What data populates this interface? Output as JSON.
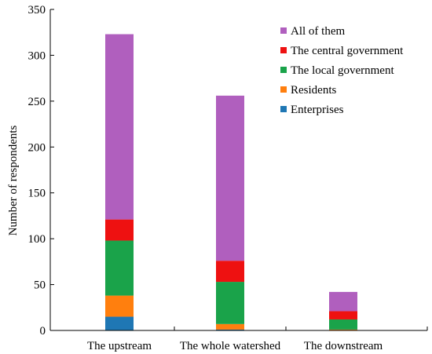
{
  "chart_data": {
    "type": "bar",
    "stacked": true,
    "ylabel": "Number of respondents",
    "xlabel": "",
    "ylim": [
      0,
      350
    ],
    "yticks": [
      0,
      50,
      100,
      150,
      200,
      250,
      300,
      350
    ],
    "categories": [
      "The upstream",
      "The whole watershed",
      "The downstream"
    ],
    "series": [
      {
        "name": "Enterprises",
        "color": "#1f77b4",
        "values": [
          15,
          1,
          0
        ]
      },
      {
        "name": "Residents",
        "color": "#ff7f0e",
        "values": [
          23,
          6,
          1
        ]
      },
      {
        "name": "The local government",
        "color": "#1aa34a",
        "values": [
          60,
          46,
          11
        ]
      },
      {
        "name": "The central government",
        "color": "#ee1111",
        "values": [
          23,
          23,
          9
        ]
      },
      {
        "name": "All of them",
        "color": "#b05fbe",
        "values": [
          202,
          180,
          21
        ]
      }
    ],
    "legend": {
      "placement": "top-right",
      "order": [
        "All of them",
        "The central government",
        "The local government",
        "Residents",
        "Enterprises"
      ]
    },
    "grid": false
  }
}
